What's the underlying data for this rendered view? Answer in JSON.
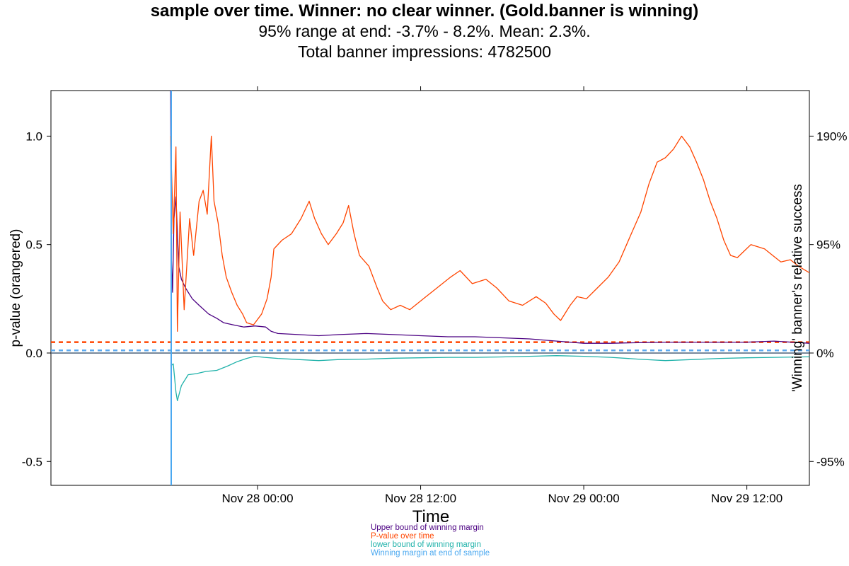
{
  "chart_data": {
    "type": "line",
    "title": "sample over time. Winner: no clear winner. (Gold.banner is winning)",
    "subtitle_lines": [
      "95% range at end: -3.7% - 8.2%. Mean: 2.3%.",
      "Total banner impressions: 4782500"
    ],
    "xlabel": "Time",
    "ylabel_left": "p-value (orangered)",
    "ylabel_right": "'Winning' banner's relative success",
    "x_ticks": [
      "Nov 28 00:00",
      "Nov 28 12:00",
      "Nov 29 00:00",
      "Nov 29 12:00"
    ],
    "y_ticks_left": [
      "-0.5",
      "0.0",
      "0.5",
      "1.0"
    ],
    "y_ticks_right": [
      "-95%",
      "0%",
      "95%",
      "190%"
    ],
    "y_tick_values": [
      -0.5,
      0.0,
      0.5,
      1.0
    ],
    "ylim": [
      -0.61,
      1.21
    ],
    "x_axis_hours_from_nov28": [
      -15.2,
      40.6
    ],
    "reference_lines": [
      {
        "name": "p = 0.05",
        "value": 0.05,
        "color": "#ff4500",
        "style": "dashed"
      },
      {
        "name": "winning margin at end of sample",
        "value": 0.012,
        "color": "#5aa9f0",
        "style": "dashed"
      },
      {
        "name": "zero",
        "value": 0.0,
        "color": "#4a6078",
        "style": "solid"
      }
    ],
    "series": [
      {
        "name": "Upper bound of winning margin",
        "color": "#4b0082",
        "points": [
          [
            -6.4,
            1.21
          ],
          [
            -6.35,
            0.46
          ],
          [
            -6.25,
            0.28
          ],
          [
            -6.15,
            0.62
          ],
          [
            -6.0,
            0.72
          ],
          [
            -5.8,
            0.4
          ],
          [
            -5.6,
            0.34
          ],
          [
            -5.3,
            0.3
          ],
          [
            -4.8,
            0.25
          ],
          [
            -4.3,
            0.22
          ],
          [
            -3.6,
            0.18
          ],
          [
            -3.0,
            0.16
          ],
          [
            -2.5,
            0.14
          ],
          [
            -1.8,
            0.13
          ],
          [
            -1.0,
            0.12
          ],
          [
            -0.2,
            0.125
          ],
          [
            0.6,
            0.12
          ],
          [
            1.0,
            0.1
          ],
          [
            1.5,
            0.09
          ],
          [
            3.0,
            0.085
          ],
          [
            4.5,
            0.08
          ],
          [
            6.0,
            0.085
          ],
          [
            8.0,
            0.09
          ],
          [
            10.0,
            0.085
          ],
          [
            12.0,
            0.08
          ],
          [
            14.0,
            0.075
          ],
          [
            16.0,
            0.075
          ],
          [
            18.0,
            0.07
          ],
          [
            20.0,
            0.065
          ],
          [
            22.0,
            0.055
          ],
          [
            24.0,
            0.045
          ],
          [
            26.0,
            0.045
          ],
          [
            28.0,
            0.048
          ],
          [
            30.0,
            0.05
          ],
          [
            32.0,
            0.05
          ],
          [
            34.0,
            0.05
          ],
          [
            36.0,
            0.05
          ],
          [
            38.0,
            0.055
          ],
          [
            40.6,
            0.045
          ]
        ]
      },
      {
        "name": "P-value over time",
        "color": "#ff4500",
        "points": [
          [
            -6.4,
            1.0
          ],
          [
            -6.2,
            0.55
          ],
          [
            -6.0,
            0.95
          ],
          [
            -5.9,
            0.1
          ],
          [
            -5.7,
            0.65
          ],
          [
            -5.4,
            0.2
          ],
          [
            -5.0,
            0.62
          ],
          [
            -4.7,
            0.45
          ],
          [
            -4.3,
            0.7
          ],
          [
            -4.0,
            0.75
          ],
          [
            -3.7,
            0.64
          ],
          [
            -3.4,
            1.0
          ],
          [
            -3.2,
            0.7
          ],
          [
            -2.9,
            0.6
          ],
          [
            -2.6,
            0.45
          ],
          [
            -2.3,
            0.35
          ],
          [
            -1.9,
            0.28
          ],
          [
            -1.5,
            0.22
          ],
          [
            -1.1,
            0.18
          ],
          [
            -0.8,
            0.14
          ],
          [
            -0.3,
            0.13
          ],
          [
            0.3,
            0.18
          ],
          [
            0.7,
            0.25
          ],
          [
            1.0,
            0.35
          ],
          [
            1.2,
            0.48
          ],
          [
            1.8,
            0.52
          ],
          [
            2.5,
            0.55
          ],
          [
            3.2,
            0.62
          ],
          [
            3.8,
            0.7
          ],
          [
            4.2,
            0.62
          ],
          [
            4.7,
            0.55
          ],
          [
            5.2,
            0.5
          ],
          [
            5.8,
            0.55
          ],
          [
            6.3,
            0.6
          ],
          [
            6.7,
            0.68
          ],
          [
            7.1,
            0.55
          ],
          [
            7.5,
            0.45
          ],
          [
            8.2,
            0.4
          ],
          [
            8.8,
            0.3
          ],
          [
            9.2,
            0.24
          ],
          [
            9.8,
            0.2
          ],
          [
            10.5,
            0.22
          ],
          [
            11.2,
            0.2
          ],
          [
            12.2,
            0.25
          ],
          [
            13.2,
            0.3
          ],
          [
            14.2,
            0.35
          ],
          [
            14.9,
            0.38
          ],
          [
            15.8,
            0.32
          ],
          [
            16.8,
            0.34
          ],
          [
            17.6,
            0.3
          ],
          [
            18.5,
            0.24
          ],
          [
            19.5,
            0.22
          ],
          [
            20.5,
            0.26
          ],
          [
            21.2,
            0.23
          ],
          [
            21.8,
            0.18
          ],
          [
            22.3,
            0.15
          ],
          [
            23.0,
            0.22
          ],
          [
            23.5,
            0.26
          ],
          [
            24.2,
            0.25
          ],
          [
            25.0,
            0.3
          ],
          [
            25.8,
            0.35
          ],
          [
            26.6,
            0.42
          ],
          [
            27.5,
            0.55
          ],
          [
            28.2,
            0.65
          ],
          [
            28.8,
            0.78
          ],
          [
            29.4,
            0.88
          ],
          [
            30.0,
            0.9
          ],
          [
            30.6,
            0.94
          ],
          [
            31.2,
            1.0
          ],
          [
            31.8,
            0.95
          ],
          [
            32.3,
            0.88
          ],
          [
            32.8,
            0.8
          ],
          [
            33.3,
            0.7
          ],
          [
            33.8,
            0.62
          ],
          [
            34.3,
            0.52
          ],
          [
            34.8,
            0.45
          ],
          [
            35.3,
            0.44
          ],
          [
            35.8,
            0.47
          ],
          [
            36.3,
            0.5
          ],
          [
            36.8,
            0.49
          ],
          [
            37.3,
            0.48
          ],
          [
            37.9,
            0.45
          ],
          [
            38.5,
            0.42
          ],
          [
            39.2,
            0.43
          ],
          [
            39.8,
            0.4
          ],
          [
            40.6,
            0.37
          ]
        ]
      },
      {
        "name": "lower bound of winning margin",
        "color": "#20b2aa",
        "points": [
          [
            -6.4,
            -0.06
          ],
          [
            -6.2,
            -0.05
          ],
          [
            -6.0,
            -0.18
          ],
          [
            -5.9,
            -0.22
          ],
          [
            -5.6,
            -0.15
          ],
          [
            -5.1,
            -0.1
          ],
          [
            -4.5,
            -0.095
          ],
          [
            -3.8,
            -0.085
          ],
          [
            -3.0,
            -0.08
          ],
          [
            -2.2,
            -0.06
          ],
          [
            -1.5,
            -0.04
          ],
          [
            -0.8,
            -0.025
          ],
          [
            -0.2,
            -0.015
          ],
          [
            0.5,
            -0.02
          ],
          [
            1.5,
            -0.025
          ],
          [
            3.0,
            -0.03
          ],
          [
            4.5,
            -0.035
          ],
          [
            6.0,
            -0.03
          ],
          [
            8.0,
            -0.028
          ],
          [
            10.0,
            -0.024
          ],
          [
            12.0,
            -0.022
          ],
          [
            14.0,
            -0.02
          ],
          [
            16.0,
            -0.02
          ],
          [
            18.0,
            -0.018
          ],
          [
            20.0,
            -0.015
          ],
          [
            22.0,
            -0.012
          ],
          [
            24.0,
            -0.015
          ],
          [
            26.0,
            -0.02
          ],
          [
            28.0,
            -0.028
          ],
          [
            30.0,
            -0.035
          ],
          [
            32.0,
            -0.03
          ],
          [
            34.0,
            -0.025
          ],
          [
            36.0,
            -0.022
          ],
          [
            38.0,
            -0.02
          ],
          [
            40.0,
            -0.018
          ],
          [
            42.0,
            -0.015
          ],
          [
            44.0,
            -0.012
          ],
          [
            46.0,
            -0.01
          ],
          [
            47.0,
            -0.015
          ]
        ]
      },
      {
        "name": "Winning margin at end of sample",
        "color": "#4aa8f0",
        "points": [
          [
            -6.35,
            1.21
          ],
          [
            -6.35,
            -0.61
          ]
        ]
      }
    ],
    "legend": [
      {
        "label": "Upper bound of winning margin",
        "color": "#4b0082"
      },
      {
        "label": "P-value over time",
        "color": "#ff4500"
      },
      {
        "label": "lower bound of winning margin",
        "color": "#20b2aa"
      },
      {
        "label": "Winning margin at end of sample",
        "color": "#4aa8f0"
      }
    ],
    "grid": false,
    "legend_placement": "bottom-center"
  }
}
